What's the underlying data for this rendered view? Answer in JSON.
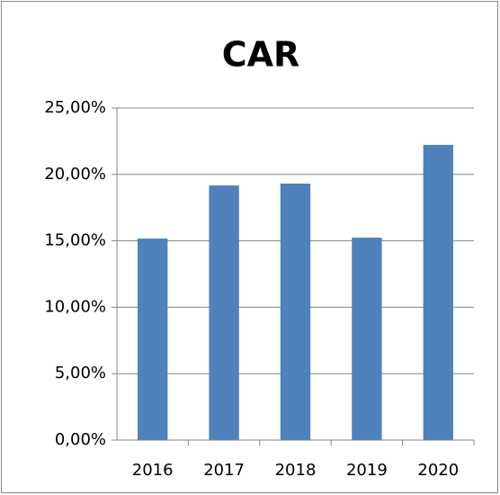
{
  "chart_data": {
    "type": "bar",
    "title": "CAR",
    "categories": [
      "2016",
      "2017",
      "2018",
      "2019",
      "2020"
    ],
    "values": [
      15.17,
      19.17,
      19.31,
      15.24,
      22.22
    ],
    "color": "#4f81bd",
    "ylim": [
      0,
      25
    ],
    "yticks": [
      {
        "value": 0,
        "label": "0,00%"
      },
      {
        "value": 5,
        "label": "5,00%"
      },
      {
        "value": 10,
        "label": "10,00%"
      },
      {
        "value": 15,
        "label": "15,00%"
      },
      {
        "value": 20,
        "label": "20,00%"
      },
      {
        "value": 25,
        "label": "25,00%"
      }
    ],
    "grid": true
  }
}
